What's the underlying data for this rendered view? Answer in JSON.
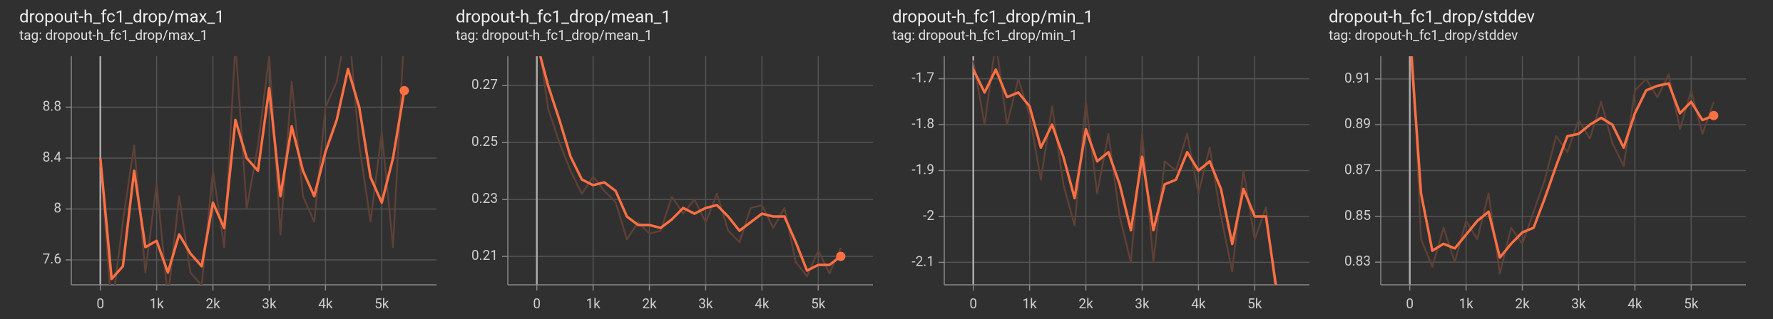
{
  "chart_data": [
    {
      "type": "line",
      "title": "dropout-h_fc1_drop/max_1",
      "subtitle": "tag: dropout-h_fc1_drop/max_1",
      "x": [
        0,
        200,
        400,
        600,
        800,
        1000,
        1200,
        1400,
        1600,
        1800,
        2000,
        2200,
        2400,
        2600,
        2800,
        3000,
        3200,
        3400,
        3600,
        3800,
        4000,
        4200,
        4400,
        4600,
        4800,
        5000,
        5200,
        5400
      ],
      "series": [
        {
          "color": "#5e4036",
          "values": [
            8.4,
            7.2,
            7.9,
            8.5,
            7.5,
            8.2,
            7.3,
            8.1,
            7.5,
            7.4,
            8.3,
            7.7,
            9.3,
            8.0,
            8.5,
            9.2,
            7.8,
            9.0,
            8.1,
            7.9,
            8.8,
            9.0,
            9.5,
            8.5,
            7.9,
            8.6,
            7.7,
            9.4
          ]
        },
        {
          "color": "#ff7043",
          "values": [
            8.4,
            7.45,
            7.55,
            8.3,
            7.7,
            7.75,
            7.5,
            7.8,
            7.65,
            7.55,
            8.05,
            7.85,
            8.7,
            8.4,
            8.3,
            8.95,
            8.1,
            8.65,
            8.3,
            8.1,
            8.45,
            8.7,
            9.1,
            8.8,
            8.25,
            8.05,
            8.4,
            8.93
          ]
        }
      ],
      "xlim": [
        -516,
        5972
      ],
      "ylim": [
        7.404,
        9.2
      ],
      "xticks": [
        {
          "value": 0,
          "label": "0"
        },
        {
          "value": 1000,
          "label": "1k"
        },
        {
          "value": 2000,
          "label": "2k"
        },
        {
          "value": 3000,
          "label": "3k"
        },
        {
          "value": 4000,
          "label": "4k"
        },
        {
          "value": 5000,
          "label": "5k"
        }
      ],
      "yticks": [
        7.6,
        8,
        8.4,
        8.8
      ],
      "grid": true
    },
    {
      "type": "line",
      "title": "dropout-h_fc1_drop/mean_1",
      "subtitle": "tag: dropout-h_fc1_drop/mean_1",
      "x": [
        0,
        200,
        400,
        600,
        800,
        1000,
        1200,
        1400,
        1600,
        1800,
        2000,
        2200,
        2400,
        2600,
        2800,
        3000,
        3200,
        3400,
        3600,
        3800,
        4000,
        4200,
        4400,
        4600,
        4800,
        5000,
        5200,
        5400
      ],
      "series": [
        {
          "color": "#5e4036",
          "values": [
            0.29,
            0.262,
            0.25,
            0.24,
            0.232,
            0.238,
            0.233,
            0.229,
            0.216,
            0.222,
            0.218,
            0.219,
            0.231,
            0.225,
            0.23,
            0.222,
            0.232,
            0.219,
            0.215,
            0.227,
            0.228,
            0.22,
            0.227,
            0.208,
            0.203,
            0.212,
            0.204,
            0.213
          ]
        },
        {
          "color": "#ff7043",
          "values": [
            0.285,
            0.27,
            0.258,
            0.245,
            0.237,
            0.235,
            0.236,
            0.233,
            0.224,
            0.221,
            0.221,
            0.22,
            0.223,
            0.227,
            0.225,
            0.227,
            0.228,
            0.224,
            0.219,
            0.222,
            0.225,
            0.224,
            0.224,
            0.215,
            0.205,
            0.207,
            0.207,
            0.21
          ]
        }
      ],
      "xlim": [
        -516,
        5972
      ],
      "ylim": [
        0.2,
        0.2803
      ],
      "xticks": [
        {
          "value": 0,
          "label": "0"
        },
        {
          "value": 1000,
          "label": "1k"
        },
        {
          "value": 2000,
          "label": "2k"
        },
        {
          "value": 3000,
          "label": "3k"
        },
        {
          "value": 4000,
          "label": "4k"
        },
        {
          "value": 5000,
          "label": "5k"
        }
      ],
      "yticks": [
        0.21,
        0.23,
        0.25,
        0.27
      ],
      "grid": true
    },
    {
      "type": "line",
      "title": "dropout-h_fc1_drop/min_1",
      "subtitle": "tag: dropout-h_fc1_drop/min_1",
      "x": [
        0,
        200,
        400,
        600,
        800,
        1000,
        1200,
        1400,
        1600,
        1800,
        2000,
        2200,
        2400,
        2600,
        2800,
        3000,
        3200,
        3400,
        3600,
        3800,
        4000,
        4200,
        4400,
        4600,
        4800,
        5000,
        5200,
        5400
      ],
      "series": [
        {
          "color": "#5e4036",
          "values": [
            -1.66,
            -1.8,
            -1.62,
            -1.8,
            -1.7,
            -1.78,
            -1.92,
            -1.76,
            -1.93,
            -2.02,
            -1.75,
            -1.95,
            -1.82,
            -2.0,
            -2.1,
            -1.82,
            -2.1,
            -1.88,
            -1.9,
            -1.82,
            -1.95,
            -1.85,
            -2.0,
            -2.12,
            -1.9,
            -2.05,
            -1.98,
            -2.2
          ]
        },
        {
          "color": "#ff7043",
          "values": [
            -1.68,
            -1.73,
            -1.68,
            -1.74,
            -1.73,
            -1.76,
            -1.85,
            -1.8,
            -1.87,
            -1.96,
            -1.81,
            -1.88,
            -1.86,
            -1.93,
            -2.03,
            -1.87,
            -2.03,
            -1.93,
            -1.92,
            -1.86,
            -1.9,
            -1.88,
            -1.94,
            -2.06,
            -1.94,
            -2.0,
            -2.0,
            -2.17
          ]
        }
      ],
      "xlim": [
        -516,
        5972
      ],
      "ylim": [
        -2.149,
        -1.651
      ],
      "xticks": [
        {
          "value": 0,
          "label": "0"
        },
        {
          "value": 1000,
          "label": "1k"
        },
        {
          "value": 2000,
          "label": "2k"
        },
        {
          "value": 3000,
          "label": "3k"
        },
        {
          "value": 4000,
          "label": "4k"
        },
        {
          "value": 5000,
          "label": "5k"
        }
      ],
      "yticks": [
        -2.1,
        -2,
        -1.9,
        -1.8,
        -1.7
      ],
      "grid": true
    },
    {
      "type": "line",
      "title": "dropout-h_fc1_drop/stddev",
      "subtitle": "tag: dropout-h_fc1_drop/stddev",
      "x": [
        0,
        200,
        400,
        600,
        800,
        1000,
        1200,
        1400,
        1600,
        1800,
        2000,
        2200,
        2400,
        2600,
        2800,
        3000,
        3200,
        3400,
        3600,
        3800,
        4000,
        4200,
        4400,
        4600,
        4800,
        5000,
        5200,
        5400
      ],
      "series": [
        {
          "color": "#5e4036",
          "values": [
            0.95,
            0.84,
            0.828,
            0.845,
            0.83,
            0.848,
            0.84,
            0.86,
            0.825,
            0.845,
            0.838,
            0.852,
            0.866,
            0.885,
            0.878,
            0.892,
            0.884,
            0.9,
            0.882,
            0.872,
            0.905,
            0.91,
            0.902,
            0.912,
            0.888,
            0.905,
            0.886,
            0.9
          ]
        },
        {
          "color": "#ff7043",
          "values": [
            0.93,
            0.86,
            0.835,
            0.838,
            0.836,
            0.842,
            0.848,
            0.852,
            0.832,
            0.838,
            0.843,
            0.845,
            0.858,
            0.872,
            0.885,
            0.886,
            0.89,
            0.893,
            0.89,
            0.88,
            0.895,
            0.905,
            0.907,
            0.908,
            0.895,
            0.9,
            0.892,
            0.894
          ]
        }
      ],
      "xlim": [
        -516,
        5972
      ],
      "ylim": [
        0.8201,
        0.9199
      ],
      "xticks": [
        {
          "value": 0,
          "label": "0"
        },
        {
          "value": 1000,
          "label": "1k"
        },
        {
          "value": 2000,
          "label": "2k"
        },
        {
          "value": 3000,
          "label": "3k"
        },
        {
          "value": 4000,
          "label": "4k"
        },
        {
          "value": 5000,
          "label": "5k"
        }
      ],
      "yticks": [
        0.83,
        0.85,
        0.87,
        0.89,
        0.91
      ],
      "grid": true
    }
  ]
}
